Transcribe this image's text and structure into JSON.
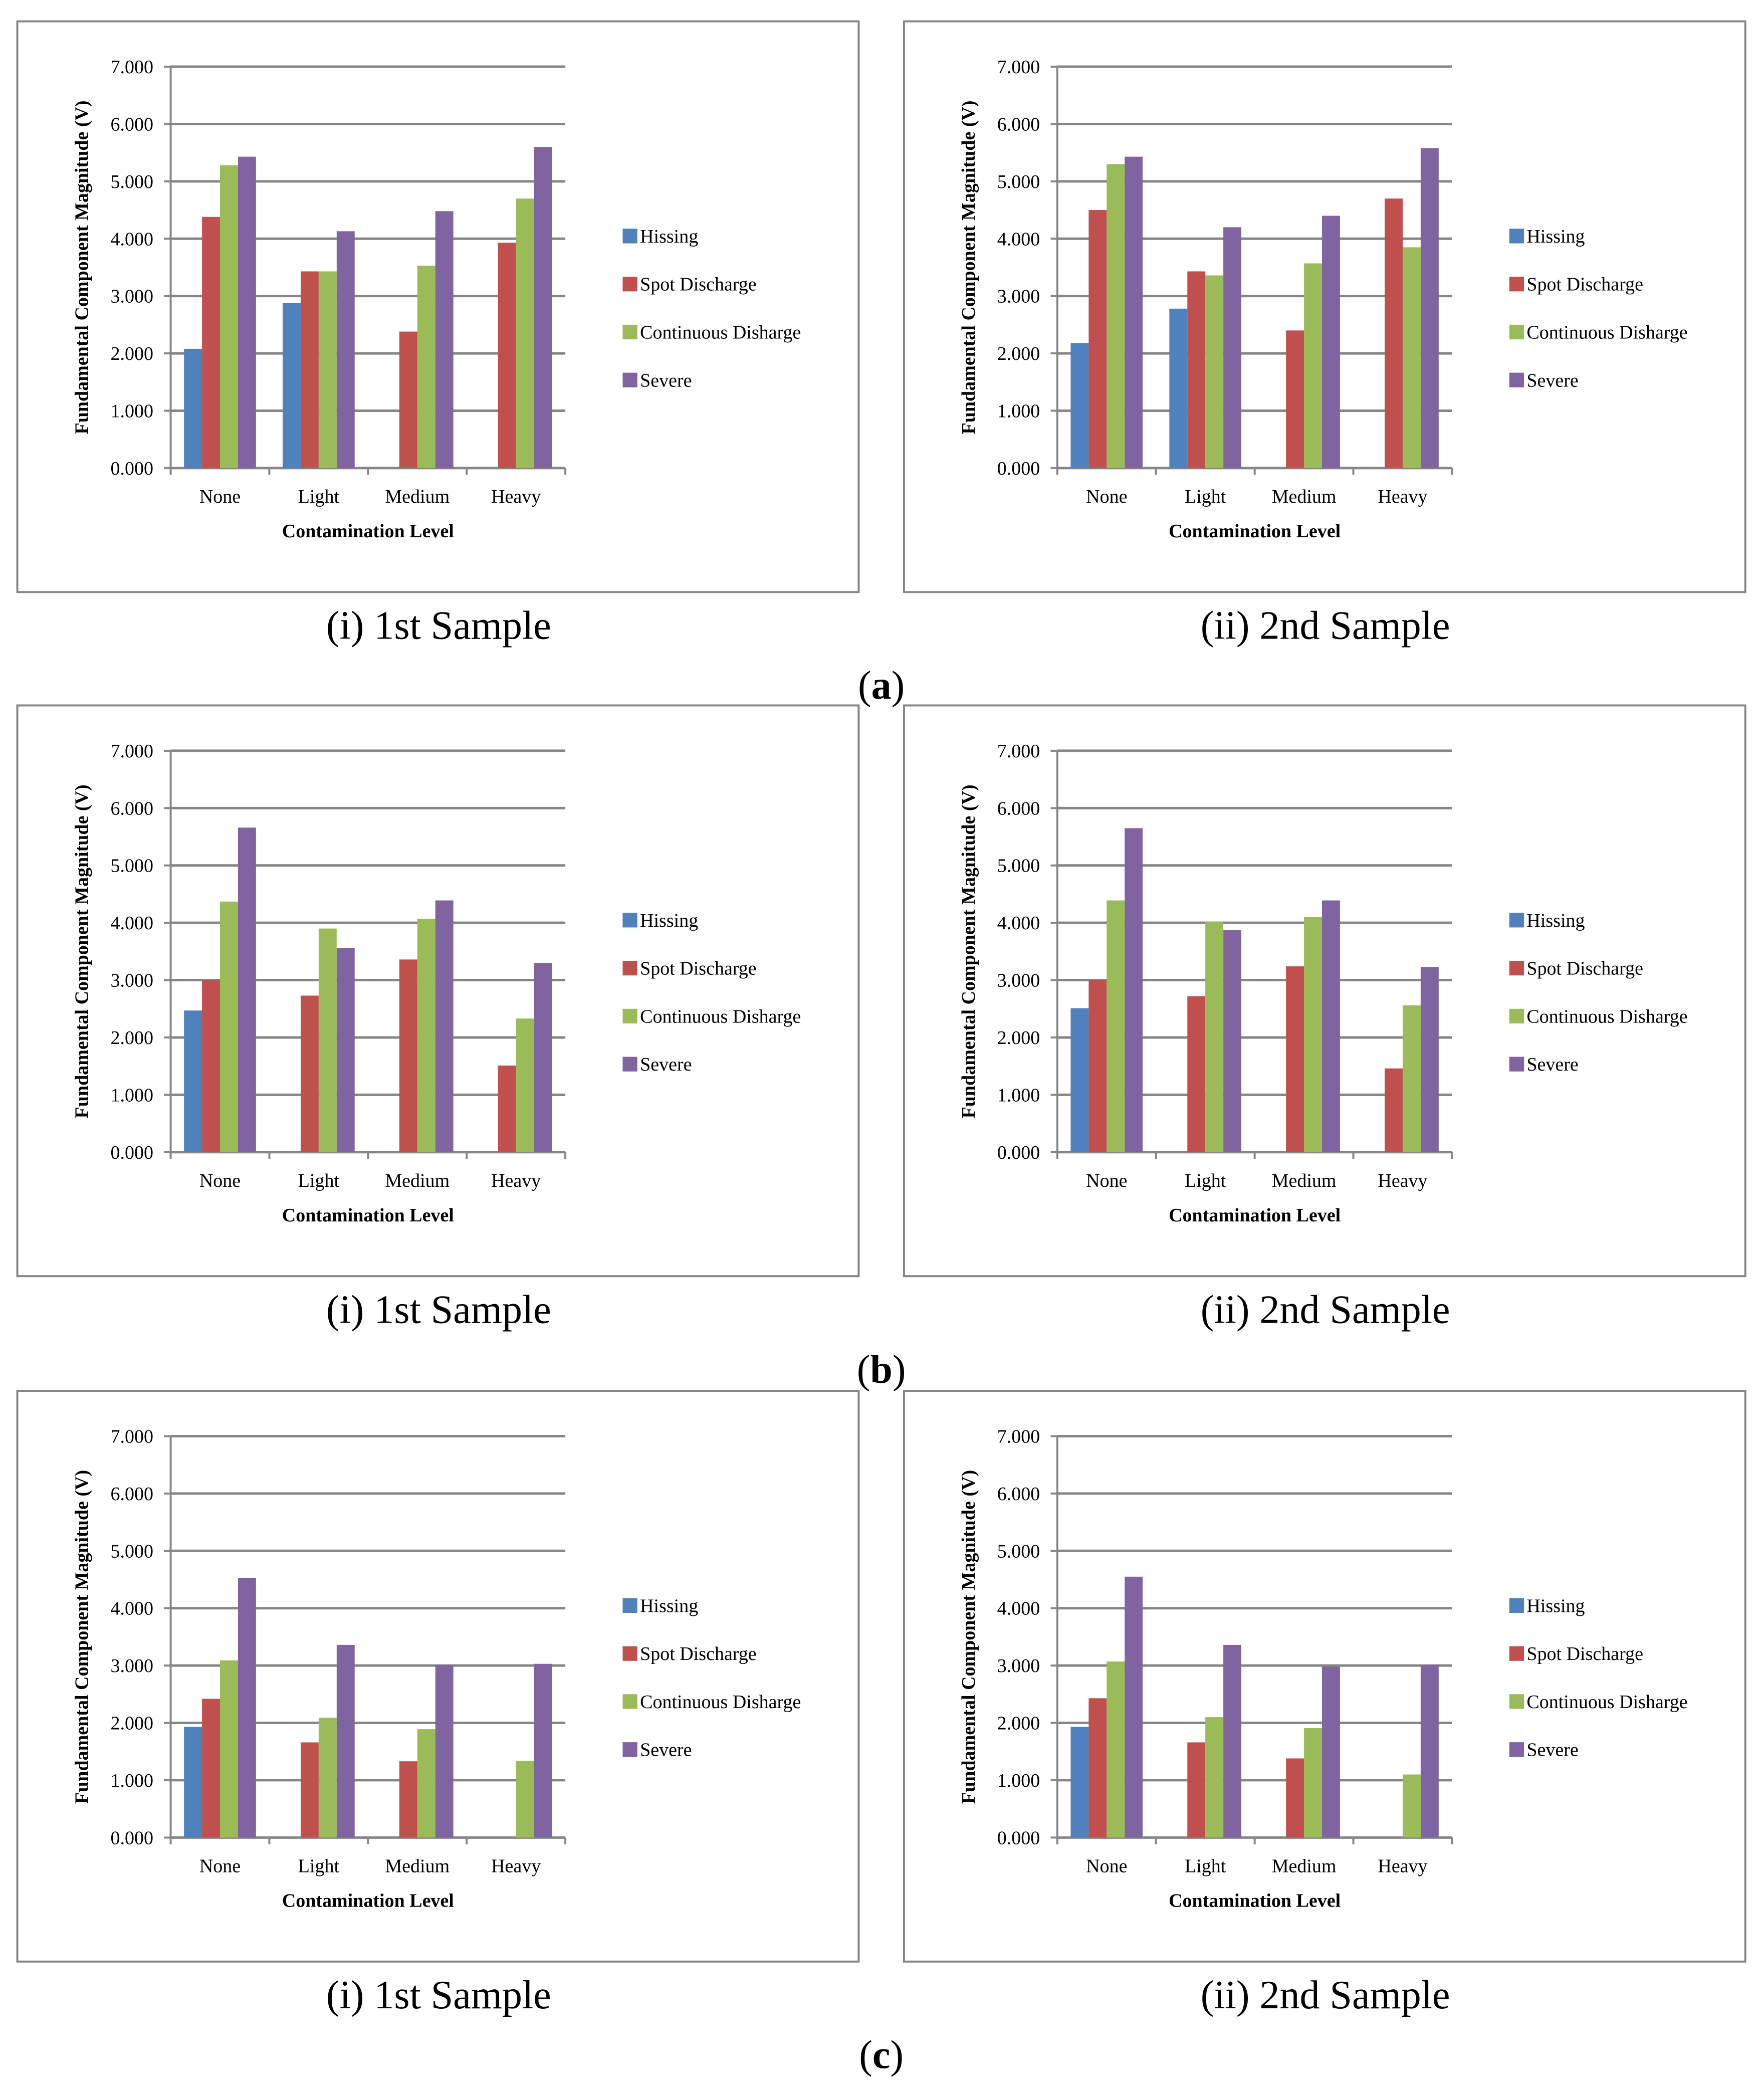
{
  "colors": {
    "Hissing": "#4f81bd",
    "Spot Discharge": "#c0504d",
    "Continuous Disharge": "#9bbb59",
    "Severe": "#8064a2",
    "grid": "#868686",
    "frame": "#868686"
  },
  "row_labels": [
    {
      "open": "(",
      "letter": "a",
      "close": ")"
    },
    {
      "open": "(",
      "letter": "b",
      "close": ")"
    },
    {
      "open": "(",
      "letter": "c",
      "close": ")"
    }
  ],
  "chart_data": [
    {
      "type": "bar",
      "caption": "(i) 1st Sample",
      "xlabel": "Contamination Level",
      "ylabel": "Fundamental Component Magnitude (V)",
      "ylim": [
        0,
        7
      ],
      "yticks": [
        "0.000",
        "1.000",
        "2.000",
        "3.000",
        "4.000",
        "5.000",
        "6.000",
        "7.000"
      ],
      "categories": [
        "None",
        "Light",
        "Medium",
        "Heavy"
      ],
      "legend_position": "right",
      "series": [
        {
          "name": "Hissing",
          "values": [
            2.08,
            2.88,
            0,
            0
          ]
        },
        {
          "name": "Spot Discharge",
          "values": [
            4.38,
            3.43,
            2.38,
            3.93
          ]
        },
        {
          "name": "Continuous Disharge",
          "values": [
            5.28,
            3.43,
            3.53,
            4.7
          ]
        },
        {
          "name": "Severe",
          "values": [
            5.43,
            4.13,
            4.48,
            5.6
          ]
        }
      ]
    },
    {
      "type": "bar",
      "caption": "(ii) 2nd Sample",
      "xlabel": "Contamination Level",
      "ylabel": "Fundamental Component Magnitude (V)",
      "ylim": [
        0,
        7
      ],
      "yticks": [
        "0.000",
        "1.000",
        "2.000",
        "3.000",
        "4.000",
        "5.000",
        "6.000",
        "7.000"
      ],
      "categories": [
        "None",
        "Light",
        "Medium",
        "Heavy"
      ],
      "legend_position": "right",
      "series": [
        {
          "name": "Hissing",
          "values": [
            2.18,
            2.78,
            0,
            0
          ]
        },
        {
          "name": "Spot Discharge",
          "values": [
            4.5,
            3.43,
            2.4,
            4.7
          ]
        },
        {
          "name": "Continuous Disharge",
          "values": [
            5.3,
            3.36,
            3.57,
            3.85
          ]
        },
        {
          "name": "Severe",
          "values": [
            5.43,
            4.2,
            4.4,
            5.58
          ]
        }
      ]
    },
    {
      "type": "bar",
      "caption": "(i) 1st Sample",
      "xlabel": "Contamination Level",
      "ylabel": "Fundamental Component Magnitude (V)",
      "ylim": [
        0,
        7
      ],
      "yticks": [
        "0.000",
        "1.000",
        "2.000",
        "3.000",
        "4.000",
        "5.000",
        "6.000",
        "7.000"
      ],
      "categories": [
        "None",
        "Light",
        "Medium",
        "Heavy"
      ],
      "legend_position": "right",
      "series": [
        {
          "name": "Hissing",
          "values": [
            2.47,
            0,
            0,
            0
          ]
        },
        {
          "name": "Spot Discharge",
          "values": [
            3.0,
            2.73,
            3.36,
            1.51
          ]
        },
        {
          "name": "Continuous Disharge",
          "values": [
            4.37,
            3.9,
            4.07,
            2.33
          ]
        },
        {
          "name": "Severe",
          "values": [
            5.66,
            3.56,
            4.39,
            3.3
          ]
        }
      ]
    },
    {
      "type": "bar",
      "caption": "(ii) 2nd Sample",
      "xlabel": "Contamination Level",
      "ylabel": "Fundamental Component Magnitude (V)",
      "ylim": [
        0,
        7
      ],
      "yticks": [
        "0.000",
        "1.000",
        "2.000",
        "3.000",
        "4.000",
        "5.000",
        "6.000",
        "7.000"
      ],
      "categories": [
        "None",
        "Light",
        "Medium",
        "Heavy"
      ],
      "legend_position": "right",
      "series": [
        {
          "name": "Hissing",
          "values": [
            2.51,
            0,
            0,
            0
          ]
        },
        {
          "name": "Spot Discharge",
          "values": [
            3.0,
            2.72,
            3.24,
            1.46
          ]
        },
        {
          "name": "Continuous Disharge",
          "values": [
            4.39,
            4.02,
            4.1,
            2.56
          ]
        },
        {
          "name": "Severe",
          "values": [
            5.65,
            3.87,
            4.39,
            3.23
          ]
        }
      ]
    },
    {
      "type": "bar",
      "caption": "(i) 1st Sample",
      "xlabel": "Contamination Level",
      "ylabel": "Fundamental Component Magnitude (V)",
      "ylim": [
        0,
        7
      ],
      "yticks": [
        "0.000",
        "1.000",
        "2.000",
        "3.000",
        "4.000",
        "5.000",
        "6.000",
        "7.000"
      ],
      "categories": [
        "None",
        "Light",
        "Medium",
        "Heavy"
      ],
      "legend_position": "right",
      "series": [
        {
          "name": "Hissing",
          "values": [
            1.93,
            0,
            0,
            0
          ]
        },
        {
          "name": "Spot Discharge",
          "values": [
            2.42,
            1.66,
            1.33,
            0
          ]
        },
        {
          "name": "Continuous Disharge",
          "values": [
            3.09,
            2.09,
            1.89,
            1.34
          ]
        },
        {
          "name": "Severe",
          "values": [
            4.53,
            3.36,
            3.01,
            3.03
          ]
        }
      ]
    },
    {
      "type": "bar",
      "caption": "(ii) 2nd Sample",
      "xlabel": "Contamination Level",
      "ylabel": "Fundamental Component Magnitude (V)",
      "ylim": [
        0,
        7
      ],
      "yticks": [
        "0.000",
        "1.000",
        "2.000",
        "3.000",
        "4.000",
        "5.000",
        "6.000",
        "7.000"
      ],
      "categories": [
        "None",
        "Light",
        "Medium",
        "Heavy"
      ],
      "legend_position": "right",
      "series": [
        {
          "name": "Hissing",
          "values": [
            1.93,
            0,
            0,
            0
          ]
        },
        {
          "name": "Spot Discharge",
          "values": [
            2.43,
            1.66,
            1.38,
            0
          ]
        },
        {
          "name": "Continuous Disharge",
          "values": [
            3.07,
            2.1,
            1.91,
            1.1
          ]
        },
        {
          "name": "Severe",
          "values": [
            4.55,
            3.36,
            2.98,
            3.01
          ]
        }
      ]
    }
  ]
}
